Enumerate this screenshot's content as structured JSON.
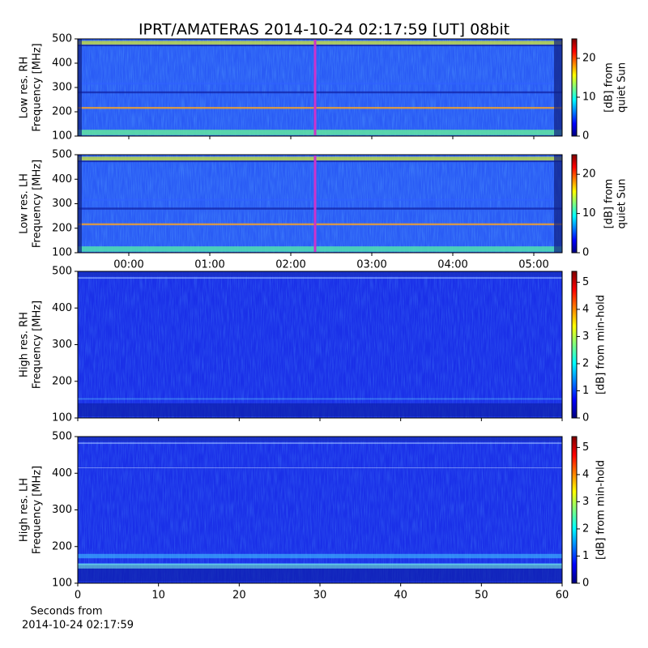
{
  "title": "IPRT/AMATERAS 2014-10-24 02:17:59 [UT]   08bit",
  "chart_data": [
    {
      "type": "spectrogram",
      "ylabel": [
        "Low res. RH",
        "Frequency [MHz]"
      ],
      "ylim": [
        100,
        500
      ],
      "yticks": [
        100,
        200,
        300,
        400,
        500
      ],
      "xlim": [
        -0.63,
        5.35
      ],
      "xticks": [
        {
          "value": 0,
          "label": "00:00"
        },
        {
          "value": 1,
          "label": "01:00"
        },
        {
          "value": 2,
          "label": "02:00"
        },
        {
          "value": 3,
          "label": "03:00"
        },
        {
          "value": 4,
          "label": "04:00"
        },
        {
          "value": 5,
          "label": "05:00"
        }
      ],
      "show_xtick_labels": false,
      "marker_x": 2.3,
      "marker_color": "#cc33cc",
      "colorbar_label": [
        "[dB] from",
        "quiet Sun"
      ],
      "clim": [
        0,
        25
      ],
      "cticks": [
        0,
        10,
        20
      ]
    },
    {
      "type": "spectrogram",
      "ylabel": [
        "Low res. LH",
        "Frequency [MHz]"
      ],
      "ylim": [
        100,
        500
      ],
      "yticks": [
        100,
        200,
        300,
        400,
        500
      ],
      "xlim": [
        -0.63,
        5.35
      ],
      "xticks": [
        {
          "value": 0,
          "label": "00:00"
        },
        {
          "value": 1,
          "label": "01:00"
        },
        {
          "value": 2,
          "label": "02:00"
        },
        {
          "value": 3,
          "label": "03:00"
        },
        {
          "value": 4,
          "label": "04:00"
        },
        {
          "value": 5,
          "label": "05:00"
        }
      ],
      "show_xtick_labels": true,
      "marker_x": 2.3,
      "marker_color": "#cc33cc",
      "colorbar_label": [
        "[dB] from",
        "quiet Sun"
      ],
      "clim": [
        0,
        25
      ],
      "cticks": [
        0,
        10,
        20
      ]
    },
    {
      "type": "spectrogram",
      "ylabel": [
        "High res. RH",
        "Frequency [MHz]"
      ],
      "ylim": [
        100,
        500
      ],
      "yticks": [
        100,
        200,
        300,
        400,
        500
      ],
      "xlim": [
        0,
        60
      ],
      "xticks": [
        0,
        10,
        20,
        30,
        40,
        50,
        60
      ],
      "show_xtick_labels": false,
      "colorbar_label": [
        "[dB] from min-hold"
      ],
      "clim": [
        0,
        5.4
      ],
      "cticks": [
        0,
        1,
        2,
        3,
        4,
        5
      ]
    },
    {
      "type": "spectrogram",
      "ylabel": [
        "High res. LH",
        "Frequency [MHz]"
      ],
      "ylim": [
        100,
        500
      ],
      "yticks": [
        100,
        200,
        300,
        400,
        500
      ],
      "xlim": [
        0,
        60
      ],
      "xticks": [
        0,
        10,
        20,
        30,
        40,
        50,
        60
      ],
      "show_xtick_labels": true,
      "xlabel": [
        "Seconds from",
        "2014-10-24 02:17:59"
      ],
      "colorbar_label": [
        "[dB] from min-hold"
      ],
      "clim": [
        0,
        5.4
      ],
      "cticks": [
        0,
        1,
        2,
        3,
        4,
        5
      ]
    }
  ]
}
